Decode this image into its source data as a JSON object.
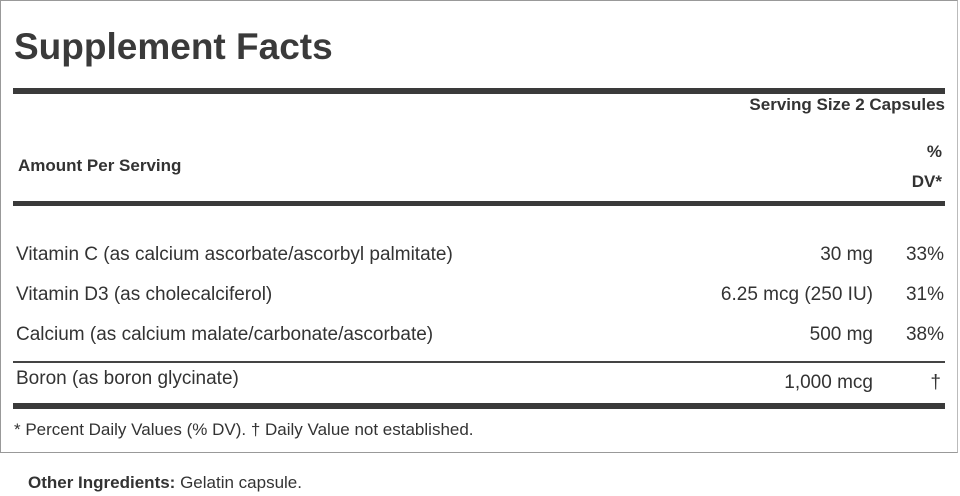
{
  "title": "Supplement Facts",
  "serving_size": "Serving Size 2 Capsules",
  "amount_per_serving": "Amount Per Serving",
  "dv_header_line1": "%",
  "dv_header_line2": "DV*",
  "nutrients": [
    {
      "name": "Vitamin C (as calcium ascorbate/ascorbyl palmitate)",
      "amount": "30 mg",
      "dv": "33%"
    },
    {
      "name": "Vitamin D3 (as cholecalciferol)",
      "amount": "6.25 mcg (250 IU)",
      "dv": "31%"
    },
    {
      "name": "Calcium (as calcium malate/carbonate/ascorbate)",
      "amount": "500 mg",
      "dv": "38%"
    },
    {
      "name": "Boron (as boron glycinate)",
      "amount": "1,000 mcg",
      "dv": "†"
    }
  ],
  "footnote": "* Percent Daily Values (% DV). † Daily Value not established.",
  "other_ingredients": {
    "label": "Other Ingredients:",
    "value": " Gelatin capsule."
  }
}
